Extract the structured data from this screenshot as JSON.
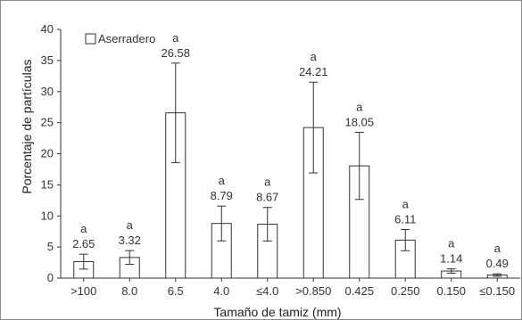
{
  "chart_data": {
    "type": "bar",
    "title": "",
    "xlabel": "Tamaño de tamiz (mm)",
    "ylabel": "Porcentaje de partículas",
    "ylim": [
      0,
      40
    ],
    "yticks": [
      0,
      5,
      10,
      15,
      20,
      25,
      30,
      35,
      40
    ],
    "grid": false,
    "legend": "top-left",
    "categories": [
      ">100",
      "8.0",
      "6.5",
      "4.0",
      "≤4.0",
      ">0.850",
      "0.425",
      "0.250",
      "0.150",
      "≤0.150"
    ],
    "series": [
      {
        "name": "Aserradero",
        "values": [
          2.65,
          3.32,
          26.58,
          8.79,
          8.67,
          24.21,
          18.05,
          6.11,
          1.14,
          0.49
        ],
        "value_labels": [
          "2.65",
          "3.32",
          "26.58",
          "8.79",
          "8.67",
          "24.21",
          "18.05",
          "6.11",
          "1.14",
          "0.49"
        ],
        "error": [
          1.2,
          1.1,
          8.0,
          2.8,
          2.7,
          7.3,
          5.4,
          1.7,
          0.35,
          0.2
        ],
        "letters": [
          "a",
          "a",
          "a",
          "a",
          "a",
          "a",
          "a",
          "a",
          "a",
          "a"
        ],
        "fill": "#ffffff",
        "stroke": "#333333"
      }
    ]
  }
}
